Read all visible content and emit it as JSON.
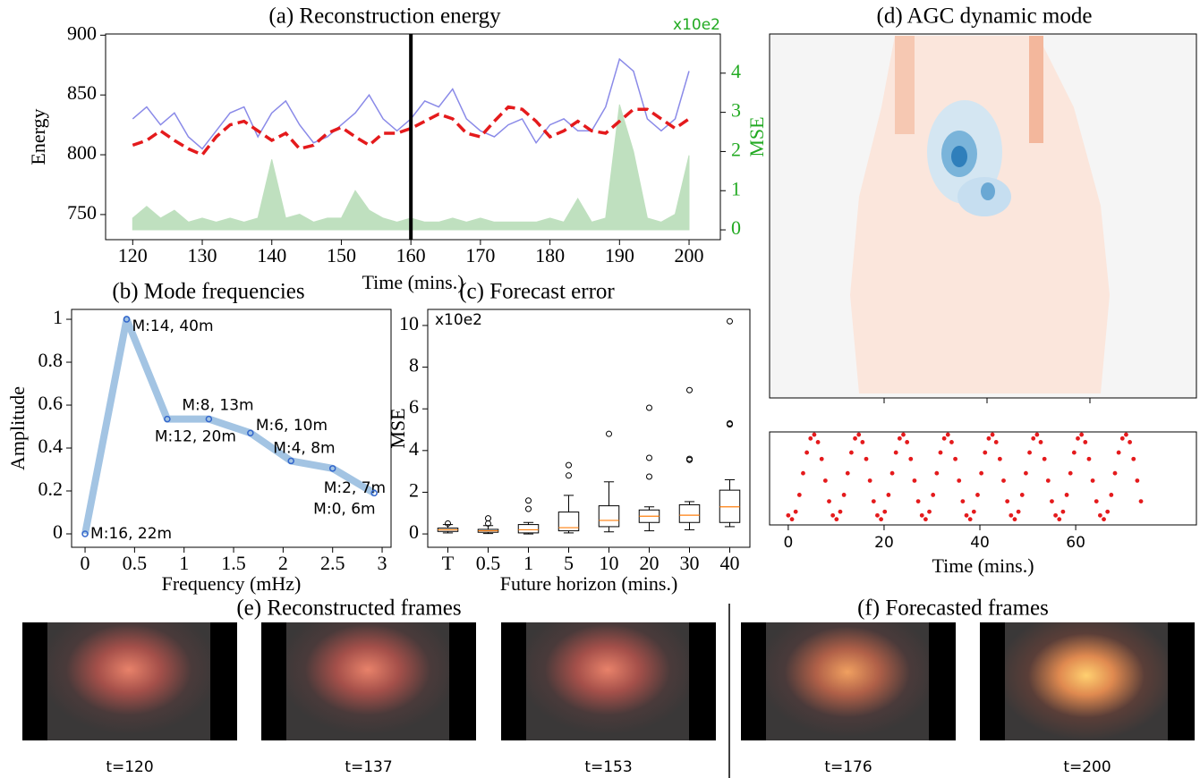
{
  "chart_data": [
    {
      "type": "line",
      "title": "(a) Reconstruction energy",
      "xlabel": "Time (mins.)",
      "ylabel": "Energy",
      "y2label": "MSE",
      "annotation": "x10e2",
      "y2color": "#22aa22",
      "x": [
        120,
        122,
        124,
        126,
        128,
        130,
        132,
        134,
        136,
        138,
        140,
        142,
        144,
        146,
        148,
        150,
        152,
        154,
        156,
        158,
        160,
        162,
        164,
        166,
        168,
        170,
        172,
        174,
        176,
        178,
        180,
        182,
        184,
        186,
        188,
        190,
        192,
        194,
        196,
        198,
        200
      ],
      "series": [
        {
          "color": "#8a8ae8",
          "style": "line",
          "values": [
            830,
            840,
            825,
            835,
            815,
            805,
            820,
            835,
            840,
            815,
            835,
            845,
            825,
            810,
            815,
            825,
            835,
            850,
            830,
            820,
            830,
            845,
            840,
            855,
            830,
            820,
            815,
            825,
            830,
            810,
            825,
            830,
            820,
            820,
            840,
            880,
            870,
            830,
            820,
            830,
            870
          ]
        },
        {
          "color": "#bfe0bf",
          "style": "area",
          "axis": "y2",
          "values": [
            0.3,
            0.6,
            0.3,
            0.5,
            0.2,
            0.3,
            0.2,
            0.3,
            0.2,
            0.3,
            1.8,
            0.3,
            0.4,
            0.2,
            0.3,
            0.3,
            1.0,
            0.5,
            0.3,
            0.2,
            0.3,
            0.2,
            0.2,
            0.3,
            0.2,
            0.3,
            0.2,
            0.2,
            0.2,
            0.2,
            0.3,
            0.2,
            0.8,
            0.2,
            0.3,
            3.2,
            2.0,
            0.3,
            0.2,
            0.4,
            1.9
          ]
        },
        {
          "color": "#e41a1c",
          "style": "dashed",
          "values": [
            808,
            812,
            820,
            812,
            805,
            800,
            815,
            825,
            828,
            820,
            812,
            818,
            805,
            808,
            818,
            823,
            815,
            808,
            818,
            818,
            822,
            828,
            834,
            830,
            818,
            815,
            828,
            840,
            838,
            828,
            815,
            820,
            828,
            820,
            818,
            828,
            838,
            838,
            830,
            822,
            830
          ]
        }
      ],
      "vline": 160,
      "xlim": [
        116.1,
        204.5
      ],
      "xticks": [
        120,
        130,
        140,
        150,
        160,
        170,
        180,
        190,
        200
      ],
      "ylim": [
        729,
        901
      ],
      "yticks": [
        750,
        800,
        850,
        900
      ],
      "y2lim": [
        -0.25,
        5.0
      ],
      "y2ticks": [
        0,
        1,
        2,
        3,
        4
      ],
      "grid": false
    },
    {
      "type": "line",
      "title": "(b)  Mode frequencies",
      "xlabel": "Frequency (mHz)",
      "ylabel": "Amplitude",
      "color": "#a3c4e3",
      "marker_color": "#3366cc",
      "x": [
        0,
        0.42,
        0.83,
        1.25,
        1.67,
        2.08,
        2.5,
        2.92
      ],
      "values": [
        0,
        1.0,
        0.535,
        0.535,
        0.47,
        0.34,
        0.305,
        0.19
      ],
      "point_labels": [
        "M:16, 22m",
        "M:14, 40m",
        "M:12, 20m",
        "M:8, 13m",
        "M:6, 10m",
        "M:4, 8m",
        "M:2, 7m",
        "M:0, 6m"
      ],
      "xlim": [
        -0.136,
        3.09
      ],
      "xticks": [
        0,
        0.5,
        1,
        1.5,
        2,
        2.5,
        3
      ],
      "ylim": [
        -0.0625,
        1.046
      ],
      "yticks": [
        0,
        0.2,
        0.4,
        0.6,
        0.8,
        1
      ],
      "grid": false
    },
    {
      "type": "box",
      "title": "(c) Forecast error",
      "xlabel": "Future horizon (mins.)",
      "ylabel": "MSE",
      "annotation": "x10e2",
      "categories": [
        "T",
        "0.5",
        "1",
        "5",
        "10",
        "20",
        "30",
        "40"
      ],
      "boxes": [
        {
          "whislo": 0.05,
          "q1": 0.12,
          "med": 0.2,
          "q3": 0.28,
          "whishi": 0.45,
          "fliers": [
            0.5
          ]
        },
        {
          "whislo": 0.02,
          "q1": 0.08,
          "med": 0.15,
          "q3": 0.22,
          "whishi": 0.4,
          "fliers": [
            0.5,
            0.75
          ]
        },
        {
          "whislo": 0.0,
          "q1": 0.05,
          "med": 0.2,
          "q3": 0.45,
          "whishi": 0.55,
          "fliers": [
            1.2,
            1.6
          ]
        },
        {
          "whislo": 0.05,
          "q1": 0.15,
          "med": 0.3,
          "q3": 1.05,
          "whishi": 1.85,
          "fliers": [
            2.8,
            3.3
          ]
        },
        {
          "whislo": 0.1,
          "q1": 0.35,
          "med": 0.65,
          "q3": 1.35,
          "whishi": 2.5,
          "fliers": [
            4.8
          ]
        },
        {
          "whislo": 0.15,
          "q1": 0.55,
          "med": 0.85,
          "q3": 1.15,
          "whishi": 1.3,
          "fliers": [
            2.75,
            3.65,
            6.05
          ]
        },
        {
          "whislo": 0.2,
          "q1": 0.55,
          "med": 0.9,
          "q3": 1.4,
          "whishi": 1.55,
          "fliers": [
            3.55,
            3.6,
            6.9
          ]
        },
        {
          "whislo": 0.35,
          "q1": 0.55,
          "med": 1.3,
          "q3": 2.1,
          "whishi": 2.6,
          "fliers": [
            5.25,
            5.3,
            10.2
          ]
        }
      ],
      "median_color": "#ff7f0e",
      "ylim": [
        -0.64,
        10.77
      ],
      "yticks": [
        0,
        2,
        4,
        6,
        8,
        10
      ],
      "grid": false
    },
    {
      "type": "image",
      "title": "(d) AGC dynamic mode"
    },
    {
      "type": "scatter",
      "xlabel": "Time (mins.)",
      "color": "#e41a1c",
      "x": [
        0,
        0.775,
        1.55,
        2.325,
        3.1,
        3.875,
        4.65,
        5.425,
        6.2,
        6.975,
        7.75,
        8.525,
        9.3,
        10.075,
        10.85,
        11.625,
        12.4,
        13.175,
        13.95,
        14.725,
        15.5,
        16.275,
        17.05,
        17.825,
        18.6,
        19.375,
        20.15,
        20.925,
        21.7,
        22.475,
        23.25,
        24.025,
        24.8,
        25.575,
        26.35,
        27.125,
        27.9,
        28.675,
        29.45,
        30.225,
        31,
        31.775,
        32.55,
        33.325,
        34.1,
        34.875,
        35.65,
        36.425,
        37.2,
        37.975,
        38.75,
        39.525,
        40.3,
        41.075,
        41.85,
        42.625,
        43.4,
        44.175,
        44.95,
        45.725,
        46.5,
        47.275,
        48.05,
        48.825,
        49.6,
        50.375,
        51.15,
        51.925,
        52.7,
        53.475,
        54.25,
        55.025,
        55.8,
        56.575,
        57.35,
        58.125,
        58.9,
        59.675,
        60.45,
        61.225,
        62,
        62.775,
        63.55,
        64.325,
        65.1,
        65.875,
        66.65,
        67.425,
        68.2,
        68.975,
        69.75,
        70.525,
        71.3,
        72.075,
        72.85,
        73.625
      ],
      "values": [
        -0.906,
        -0.996,
        -0.819,
        -0.423,
        0.087,
        0.574,
        0.906,
        0.996,
        0.819,
        0.423,
        -0.087,
        -0.574,
        -0.906,
        -0.996,
        -0.819,
        -0.423,
        0.087,
        0.574,
        0.906,
        0.996,
        0.819,
        0.423,
        -0.087,
        -0.574,
        -0.906,
        -0.996,
        -0.819,
        -0.423,
        0.087,
        0.574,
        0.906,
        0.996,
        0.819,
        0.423,
        -0.087,
        -0.574,
        -0.906,
        -0.996,
        -0.819,
        -0.423,
        0.087,
        0.574,
        0.906,
        0.996,
        0.819,
        0.423,
        -0.087,
        -0.574,
        -0.906,
        -0.996,
        -0.819,
        -0.423,
        0.087,
        0.574,
        0.906,
        0.996,
        0.819,
        0.423,
        -0.087,
        -0.574,
        -0.906,
        -0.996,
        -0.819,
        -0.423,
        0.087,
        0.574,
        0.906,
        0.996,
        0.819,
        0.423,
        -0.087,
        -0.574,
        -0.906,
        -0.996,
        -0.819,
        -0.423,
        0.087,
        0.574,
        0.906,
        0.996,
        0.819,
        0.423,
        -0.087,
        -0.574,
        -0.906,
        -0.996,
        -0.819,
        -0.423,
        0.087,
        0.574,
        0.906,
        0.996,
        0.819,
        0.423,
        -0.087,
        -0.574
      ],
      "xlim": [
        -3.9,
        85.2
      ],
      "xticks": [
        0,
        20,
        40,
        60
      ],
      "ylim": [
        -1.13,
        1.06
      ],
      "grid": false
    }
  ],
  "frames": [
    {
      "title": "(e) Reconstructed frames",
      "labels": [
        "t=120",
        "t=137",
        "t=153"
      ]
    },
    {
      "title": "(f) Forecasted frames",
      "labels": [
        "t=176",
        "t=200"
      ]
    }
  ]
}
